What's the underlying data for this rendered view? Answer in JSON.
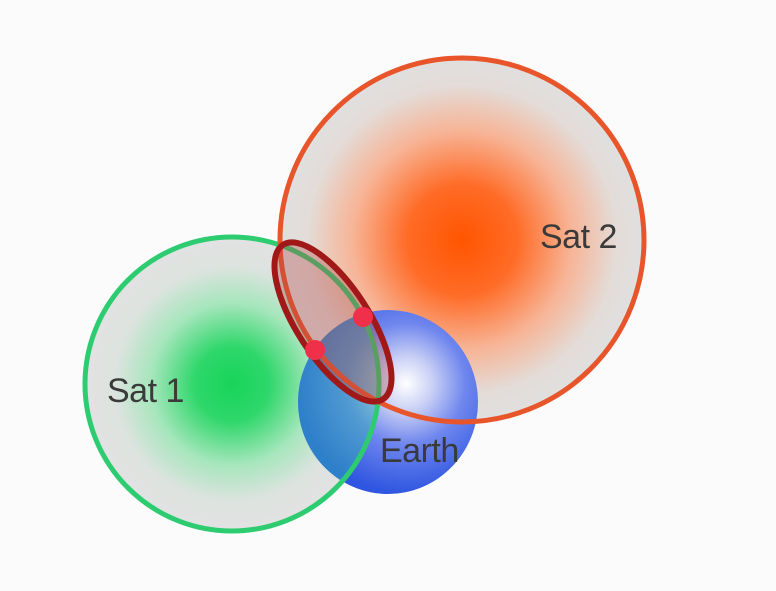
{
  "diagram": {
    "satellites": [
      {
        "label": "Sat 1",
        "ring_color": "#2ecc71",
        "core_color": "#1fd35a"
      },
      {
        "label": "Sat 2",
        "ring_color": "#e8552a",
        "core_color": "#ff5a1a"
      }
    ],
    "earth": {
      "label": "Earth",
      "color": "#3b63e8"
    },
    "intersection_region": {
      "color": "#a01818"
    },
    "intersection_points": {
      "count": 2,
      "color": "#f0304a"
    }
  }
}
